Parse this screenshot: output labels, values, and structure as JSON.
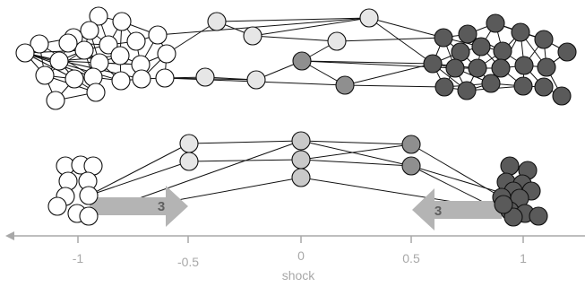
{
  "palette": {
    "white_node": "#ffffff",
    "light_node": "#e6e6e6",
    "mid_node": "#c9c9c9",
    "gray_node": "#8f8f8f",
    "dark_node": "#5a5a5a",
    "arrow_fill": "#b4b4b4",
    "axis_color": "#a8a8a8"
  },
  "axis": {
    "label": "shock",
    "ticks": [
      "-1",
      "-0.5",
      "0",
      "0.5",
      "1"
    ]
  },
  "arrows": [
    {
      "direction": "right",
      "label": "3"
    },
    {
      "direction": "left",
      "label": "3"
    }
  ]
}
